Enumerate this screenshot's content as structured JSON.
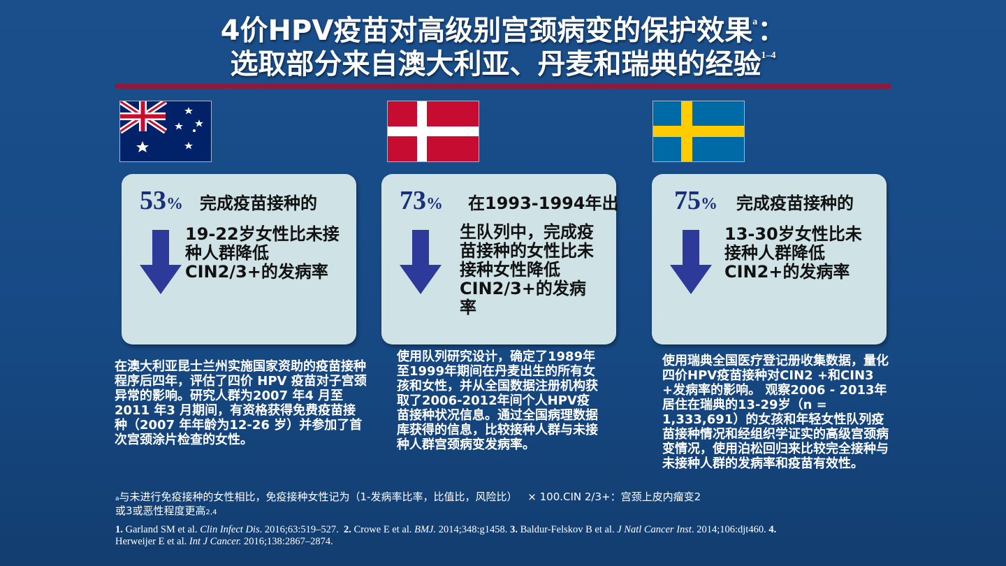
{
  "title": {
    "line1": "4价HPV疫苗对高级别宫颈病变的保护效果",
    "line1_sup": "a",
    "line1_suffix": "：",
    "line2": "选取部分来自澳大利亚、丹麦和瑞典的经验",
    "line2_sup": "1–4"
  },
  "colors": {
    "accent_bar": "#8b1a3c",
    "card_bg": "#cfe3e6",
    "arrow": "#2d3a9a",
    "pct": "#1a2f7a"
  },
  "cards": [
    {
      "flag": "australia-flag",
      "pct": "53",
      "pct_unit": "%",
      "lead": "完成疫苗接种的",
      "text": "19-22岁女性比未接种人群降低CIN2/3+的发病率",
      "icon": "down-arrow-icon",
      "description": "在澳大利亚昆士兰州实施国家资助的疫苗接种程序后四年，评估了四价 HPV 疫苗对子宫颈异常的影响。研究人群为2007 年4 月至2011 年3 月期间，有资格获得免费疫苗接种（2007 年年龄为12-26 岁）并参加了首次宫颈涂片检查的女性。"
    },
    {
      "flag": "denmark-flag",
      "pct": "73",
      "pct_unit": "%",
      "lead": "在1993-1994年出",
      "text": "生队列中，完成疫苗接种的女性比未接种女性降低CIN2/3+的发病率",
      "icon": "down-arrow-icon",
      "description": "使用队列研究设计，确定了1989年至1999年期间在丹麦出生的所有女孩和女性，并从全国数据注册机构获取了2006-2012年间个人HPV疫苗接种状况信息。通过全国病理数据库获得的信息，比较接种人群与未接种人群宫颈病变发病率。"
    },
    {
      "flag": "sweden-flag",
      "pct": "75",
      "pct_unit": "%",
      "lead": "完成疫苗接种的",
      "text": "13-30岁女性比未接种人群降低CIN2+的发病率",
      "icon": "down-arrow-icon",
      "description": "使用瑞典全国医疗登记册收集数据，量化四价HPV疫苗接种对CIN2 +和CIN3 +发病率的影响。 观察2006 - 2013年居住在瑞典的13-29岁（n = 1,333,691）的女孩和年轻女性队列疫苗接种情况和经组织学证实的高级宫颈病变情况，使用泊松回归来比较完全接种与未接种人群的发病率和疫苗有效性。"
    }
  ],
  "footnote": {
    "marker": "a",
    "line1": "与未进行免疫接种的女性相比，免疫接种女性记为（1-发病率比率，比值比，风险比）",
    "line1_right": "× 100.CIN 2/3+：宫颈上皮内瘤变2",
    "line2": "或3或恶性程度更高",
    "line2_sub": "2,4"
  },
  "references": {
    "r1_num": "1.",
    "r1_a": "Garland SM et al.",
    "r1_j": "Clin Infect Dis",
    "r1_b": ". 2016;63:519–527.",
    "r2_num": "2.",
    "r2_a": "Crowe E et al.",
    "r2_j": "BMJ.",
    "r2_b": "2014;348:g1458.",
    "r3_num": "3.",
    "r3_a": "Baldur-Felskov B et al.",
    "r3_j": "J Natl Cancer Inst",
    "r3_b": ". 2014;106:djt460.",
    "r4_num": "4.",
    "r4_a": "Herweijer E et al.",
    "r4_j": "Int J Cancer.",
    "r4_b": "2016;138:2867–2874."
  }
}
